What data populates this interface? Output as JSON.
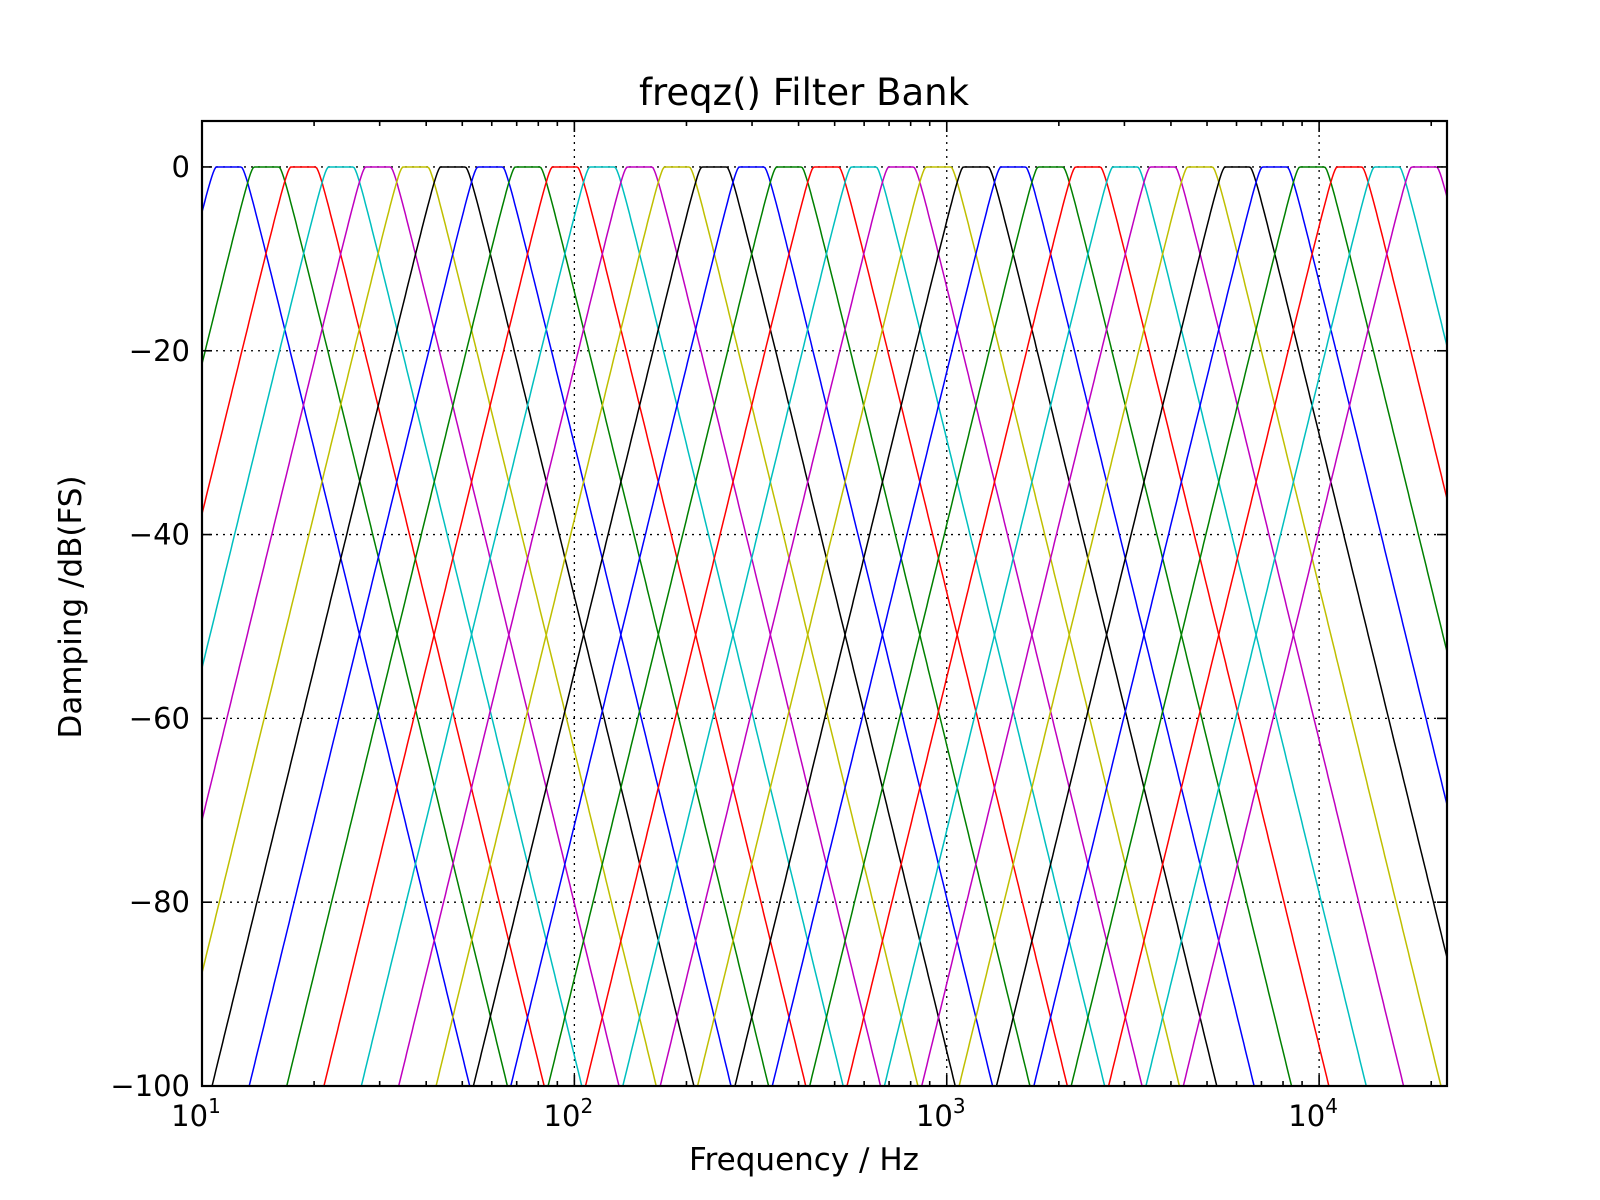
{
  "chart_data": {
    "type": "line",
    "title": "freqz() Filter Bank",
    "xlabel": "Frequency / Hz",
    "ylabel": "Damping /dB(FS)",
    "xscale": "log",
    "xlim": [
      10,
      22050
    ],
    "ylim": [
      -100,
      5
    ],
    "grid": true,
    "legend": "none",
    "x_ticks": [
      {
        "value": 10,
        "base": "10",
        "exp": "1"
      },
      {
        "value": 100,
        "base": "10",
        "exp": "2"
      },
      {
        "value": 1000,
        "base": "10",
        "exp": "3"
      },
      {
        "value": 10000,
        "base": "10",
        "exp": "4"
      }
    ],
    "y_ticks": [
      {
        "value": 0,
        "label": "0"
      },
      {
        "value": -20,
        "label": "−20"
      },
      {
        "value": -40,
        "label": "−40"
      },
      {
        "value": -60,
        "label": "−60"
      },
      {
        "value": -80,
        "label": "−80"
      },
      {
        "value": -100,
        "label": "−100"
      }
    ],
    "color_cycle": [
      "#0000ff",
      "#008000",
      "#ff0000",
      "#00bfbf",
      "#bf00bf",
      "#bfbf00",
      "#000000"
    ],
    "filter_model": {
      "bands_per_octave": 3,
      "passband_halfwidth_octaves": 0.11,
      "slope_db_per_octave": 50.0,
      "passband_gain_db": 0
    },
    "series": [
      {
        "center_hz": 11.8
      },
      {
        "center_hz": 14.9
      },
      {
        "center_hz": 18.7
      },
      {
        "center_hz": 23.6
      },
      {
        "center_hz": 29.7
      },
      {
        "center_hz": 37.4
      },
      {
        "center_hz": 47.2
      },
      {
        "center_hz": 59.4
      },
      {
        "center_hz": 74.9
      },
      {
        "center_hz": 94.3
      },
      {
        "center_hz": 118.8
      },
      {
        "center_hz": 149.7
      },
      {
        "center_hz": 188.6
      },
      {
        "center_hz": 237.6
      },
      {
        "center_hz": 299.3
      },
      {
        "center_hz": 377.1
      },
      {
        "center_hz": 475.1
      },
      {
        "center_hz": 598.6
      },
      {
        "center_hz": 754.2
      },
      {
        "center_hz": 950.2
      },
      {
        "center_hz": 1197.2
      },
      {
        "center_hz": 1508.3
      },
      {
        "center_hz": 1900.4
      },
      {
        "center_hz": 2394.3
      },
      {
        "center_hz": 3016.6
      },
      {
        "center_hz": 3800.7
      },
      {
        "center_hz": 4788.6
      },
      {
        "center_hz": 6033.2
      },
      {
        "center_hz": 7601.3
      },
      {
        "center_hz": 9577.0
      },
      {
        "center_hz": 12066.0
      },
      {
        "center_hz": 15202.0
      },
      {
        "center_hz": 19154.0
      }
    ]
  }
}
